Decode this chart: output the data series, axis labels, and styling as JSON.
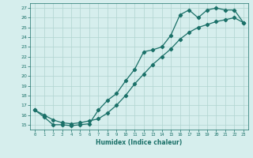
{
  "title": "",
  "xlabel": "Humidex (Indice chaleur)",
  "ylabel": "",
  "xlim": [
    -0.5,
    23.5
  ],
  "ylim": [
    14.5,
    27.5
  ],
  "xticks": [
    0,
    1,
    2,
    3,
    4,
    5,
    6,
    7,
    8,
    9,
    10,
    11,
    12,
    13,
    14,
    15,
    16,
    17,
    18,
    19,
    20,
    21,
    22,
    23
  ],
  "yticks": [
    15,
    16,
    17,
    18,
    19,
    20,
    21,
    22,
    23,
    24,
    25,
    26,
    27
  ],
  "background_color": "#d6eeed",
  "grid_color": "#b0d4d0",
  "line_color": "#1a7068",
  "curve1_x": [
    0,
    1,
    2,
    3,
    4,
    5,
    6,
    7,
    8,
    9,
    10,
    11,
    12,
    13,
    14,
    15,
    16,
    17,
    18,
    19,
    20,
    21,
    22,
    23
  ],
  "curve1_y": [
    16.5,
    15.8,
    15.0,
    15.0,
    14.9,
    15.0,
    15.1,
    16.5,
    17.5,
    18.2,
    19.5,
    20.7,
    22.5,
    22.7,
    23.0,
    24.2,
    26.3,
    26.8,
    26.0,
    26.8,
    27.0,
    26.8,
    26.8,
    25.5
  ],
  "curve2_x": [
    0,
    1,
    2,
    3,
    4,
    5,
    6,
    7,
    8,
    9,
    10,
    11,
    12,
    13,
    14,
    15,
    16,
    17,
    18,
    19,
    20,
    21,
    22,
    23
  ],
  "curve2_y": [
    16.5,
    16.0,
    15.5,
    15.2,
    15.1,
    15.2,
    15.4,
    15.6,
    16.2,
    17.0,
    18.0,
    19.2,
    20.2,
    21.2,
    22.0,
    22.8,
    23.8,
    24.5,
    25.0,
    25.3,
    25.6,
    25.8,
    26.0,
    25.5
  ]
}
